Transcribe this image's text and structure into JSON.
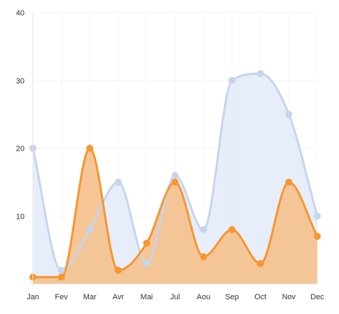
{
  "chart_data": {
    "type": "area",
    "categories": [
      "Jan",
      "Fev",
      "Mar",
      "Avr",
      "Mai",
      "Jul",
      "Aou",
      "Sep",
      "Oct",
      "Nov",
      "Dec"
    ],
    "series": [
      {
        "values": [
          20,
          2,
          8,
          15,
          3,
          16,
          8,
          30,
          31,
          25,
          10
        ],
        "color": "#c6d4ee",
        "fill": "#e1e8f7"
      },
      {
        "values": [
          1,
          1,
          20,
          2,
          6,
          15,
          4,
          8,
          3,
          15,
          7
        ],
        "color": "#f7952f",
        "fill": "#f5c08c"
      }
    ],
    "title": "",
    "xlabel": "",
    "ylabel": "",
    "ylim": [
      0,
      40
    ],
    "yticks": [
      10,
      20,
      30,
      40
    ],
    "grid": true,
    "legend": "none"
  }
}
